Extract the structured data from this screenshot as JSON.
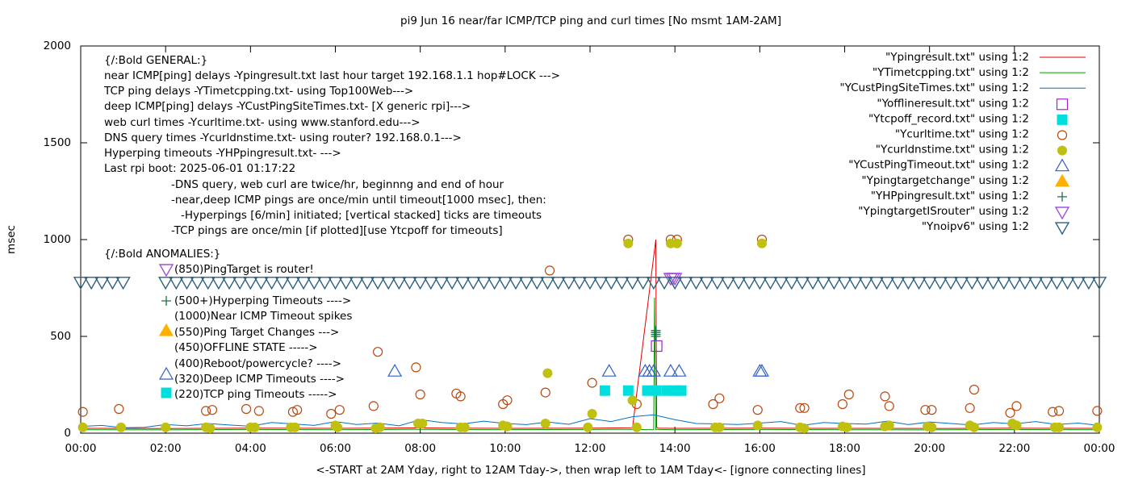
{
  "chart_data": {
    "type": "scatter",
    "title": "pi9 Jun 16  near/far ICMP/TCP ping and curl times [No msmt 1AM-2AM]",
    "xlabel": "<-START at 2AM Yday, right to 12AM Tday->, then wrap left to 1AM Tday<- [ignore connecting lines]",
    "ylabel": "msec",
    "xlim": [
      0,
      24
    ],
    "ylim": [
      0,
      2000
    ],
    "xticks": [
      {
        "value": 0,
        "label": "00:00"
      },
      {
        "value": 2,
        "label": "02:00"
      },
      {
        "value": 4,
        "label": "04:00"
      },
      {
        "value": 6,
        "label": "06:00"
      },
      {
        "value": 8,
        "label": "08:00"
      },
      {
        "value": 10,
        "label": "10:00"
      },
      {
        "value": 12,
        "label": "12:00"
      },
      {
        "value": 14,
        "label": "14:00"
      },
      {
        "value": 16,
        "label": "16:00"
      },
      {
        "value": 18,
        "label": "18:00"
      },
      {
        "value": 20,
        "label": "20:00"
      },
      {
        "value": 22,
        "label": "22:00"
      },
      {
        "value": 24,
        "label": "00:00"
      }
    ],
    "yticks": [
      0,
      500,
      1000,
      1500,
      2000
    ],
    "legend": "top-right",
    "annotations": [
      "{/:Bold GENERAL:}",
      "near ICMP[ping] delays -Ypingresult.txt last hour target 192.168.1.1 hop#LOCK --->",
      "TCP ping delays -YTimetcpping.txt- using Top100Web--->",
      "deep ICMP[ping] delays -YCustPingSiteTimes.txt- [X generic rpi]--->",
      "web curl times -Ycurltime.txt- using www.stanford.edu--->",
      "DNS query times -Ycurldnstime.txt- using router? 192.168.0.1--->",
      "Hyperping timeouts -YHPpingresult.txt- --->",
      "Last rpi boot: 2025-06-01 01:17:22",
      "-DNS query, web curl are twice/hr, beginnng and end of hour",
      "-near,deep ICMP pings are once/min until timeout[1000 msec], then:",
      "-Hyperpings [6/min] initiated; [vertical stacked] ticks are timeouts",
      "-TCP pings are once/min [if plotted][use Ytcpoff for timeouts]",
      "{/:Bold ANOMALIES:}",
      "(850)PingTarget is router!",
      "(500+)Hyperping Timeouts ---->",
      "(1000)Near ICMP Timeout spikes",
      "(550)Ping Target Changes --->",
      "(450)OFFLINE STATE ----->",
      "(400)Reboot/powercycle? ---->",
      "(320)Deep ICMP Timeouts ---->",
      "(220)TCP ping Timeouts ----->"
    ],
    "series": [
      {
        "name": "\"Ypingresult.txt\" using 1:2",
        "color": "#e00000",
        "marker": "line",
        "x": [
          0,
          2,
          4,
          6,
          8,
          10,
          12,
          13,
          13.55,
          13.57,
          13.6,
          14,
          16,
          18,
          20,
          22,
          24
        ],
        "values": [
          25,
          24,
          26,
          25,
          27,
          25,
          26,
          28,
          1000,
          30,
          26,
          25,
          26,
          25,
          24,
          26,
          25
        ]
      },
      {
        "name": "\"YTimetcpping.txt\" using 1:2",
        "color": "#009e00",
        "marker": "line",
        "x": [
          0,
          2,
          4,
          6,
          8,
          10,
          12,
          13,
          13.5,
          13.52,
          13.55,
          14,
          16,
          18,
          20,
          22,
          24
        ],
        "values": [
          18,
          17,
          19,
          18,
          20,
          18,
          19,
          20,
          18,
          700,
          20,
          18,
          19,
          18,
          17,
          19,
          18
        ]
      },
      {
        "name": "\"YCustPingSiteTimes.txt\" using 1:2",
        "color": "#0072c0",
        "marker": "line",
        "x": [
          0,
          0.5,
          1,
          1.5,
          2,
          2.5,
          3,
          3.5,
          4,
          4.5,
          5,
          5.5,
          6,
          6.5,
          7,
          7.5,
          8,
          8.5,
          9,
          9.5,
          10,
          10.5,
          11,
          11.5,
          12,
          12.5,
          13,
          13.5,
          14,
          14.5,
          15,
          15.5,
          16,
          16.5,
          17,
          17.5,
          18,
          18.5,
          19,
          19.5,
          20,
          20.5,
          21,
          21.5,
          22,
          22.5,
          23,
          23.5,
          24
        ],
        "values": [
          35,
          40,
          28,
          30,
          45,
          38,
          50,
          42,
          36,
          55,
          48,
          40,
          60,
          45,
          52,
          38,
          70,
          55,
          48,
          62,
          50,
          44,
          58,
          46,
          75,
          60,
          85,
          95,
          70,
          50,
          48,
          45,
          52,
          60,
          40,
          55,
          50,
          47,
          62,
          44,
          58,
          50,
          42,
          55,
          48,
          60,
          45,
          52,
          40
        ]
      },
      {
        "name": "\"Yofflineresult.txt\" using 1:2",
        "color": "#a020d0",
        "marker": "square-open",
        "x": [
          13.57
        ],
        "values": [
          450
        ]
      },
      {
        "name": "\"Ytcpoff_record.txt\" using 1:2",
        "color": "#00dede",
        "marker": "square",
        "x": [
          12.35,
          12.9,
          13.35,
          13.55,
          13.8,
          14.0,
          14.15
        ],
        "values": [
          220,
          220,
          220,
          220,
          220,
          220,
          220
        ]
      },
      {
        "name": "\"Ycurltime.txt\" using 1:2",
        "color": "#b8480f",
        "marker": "circle-open",
        "x": [
          0.05,
          0.9,
          2.95,
          3.1,
          3.9,
          4.2,
          5.0,
          5.1,
          5.9,
          6.1,
          6.9,
          7.0,
          7.9,
          8.0,
          8.85,
          8.95,
          9.95,
          10.05,
          10.95,
          11.05,
          12.05,
          12.9,
          13.1,
          13.9,
          14.05,
          14.9,
          15.05,
          15.95,
          16.05,
          16.95,
          17.05,
          17.95,
          18.1,
          18.95,
          19.05,
          19.9,
          20.05,
          20.95,
          21.05,
          21.9,
          22.05,
          22.9,
          23.05,
          23.95
        ],
        "values": [
          110,
          125,
          115,
          120,
          125,
          115,
          110,
          120,
          100,
          120,
          140,
          420,
          340,
          200,
          205,
          190,
          150,
          170,
          210,
          840,
          260,
          1000,
          150,
          1000,
          1000,
          150,
          180,
          120,
          1000,
          130,
          130,
          150,
          200,
          190,
          140,
          120,
          120,
          130,
          225,
          105,
          140,
          110,
          115,
          115
        ]
      },
      {
        "name": "\"Ycurldnstime.txt\" using 1:2",
        "color": "#c0c010",
        "marker": "circle",
        "x": [
          0.05,
          0.95,
          2.0,
          2.95,
          3.05,
          4.0,
          4.1,
          4.95,
          5.05,
          6.0,
          6.05,
          6.95,
          7.05,
          7.95,
          8.05,
          8.95,
          9.05,
          9.95,
          10.05,
          10.95,
          11.0,
          11.95,
          12.05,
          12.9,
          13.0,
          13.1,
          13.9,
          14.05,
          14.95,
          15.05,
          15.95,
          16.05,
          16.95,
          17.05,
          17.95,
          18.05,
          18.95,
          19.05,
          19.95,
          20.05,
          20.95,
          21.05,
          21.95,
          22.05,
          22.95,
          23.05,
          23.95
        ],
        "values": [
          30,
          30,
          30,
          30,
          25,
          30,
          30,
          30,
          30,
          40,
          30,
          25,
          30,
          50,
          50,
          30,
          30,
          40,
          35,
          50,
          310,
          30,
          100,
          980,
          170,
          30,
          980,
          980,
          30,
          30,
          40,
          980,
          30,
          25,
          35,
          30,
          35,
          40,
          35,
          30,
          40,
          30,
          50,
          40,
          30,
          30,
          30
        ]
      },
      {
        "name": "\"YCustPingTimeout.txt\" using 1:2",
        "color": "#3060c8",
        "marker": "triangle-up-open",
        "x": [
          7.4,
          12.45,
          13.3,
          13.4,
          13.5,
          13.9,
          14.1,
          16.0,
          16.05
        ],
        "values": [
          320,
          320,
          320,
          320,
          320,
          320,
          320,
          320,
          320
        ]
      },
      {
        "name": "\"Ypingtargetchange\" using 1:2",
        "color": "#ffb000",
        "marker": "triangle-up",
        "x": [],
        "values": []
      },
      {
        "name": "\"YHPpingresult.txt\" using 1:2",
        "color": "#207048",
        "marker": "plus",
        "x": [
          13.55,
          13.55,
          13.55,
          13.55
        ],
        "values": [
          500,
          510,
          520,
          530
        ]
      },
      {
        "name": "\"YpingtargetISrouter\" using 1:2",
        "color": "#a050e0",
        "marker": "triangle-down-open",
        "x": [
          13.9,
          13.95,
          14.0
        ],
        "values": [
          800,
          800,
          800
        ]
      },
      {
        "name": "\"Ynoipv6\" using 1:2",
        "color": "#2c6080",
        "marker": "triangle-down-open",
        "x": [
          0,
          0.25,
          0.5,
          0.75,
          1,
          2,
          2.25,
          2.5,
          2.75,
          3,
          3.25,
          3.5,
          3.75,
          4,
          4.25,
          4.5,
          4.75,
          5,
          5.25,
          5.5,
          5.75,
          6,
          6.25,
          6.5,
          6.75,
          7,
          7.25,
          7.5,
          7.75,
          8,
          8.25,
          8.5,
          8.75,
          9,
          9.25,
          9.5,
          9.75,
          10,
          10.25,
          10.5,
          10.75,
          11,
          11.25,
          11.5,
          11.75,
          12,
          12.25,
          12.5,
          12.75,
          13,
          13.25,
          13.5,
          13.75,
          14,
          14.25,
          14.5,
          14.75,
          15,
          15.25,
          15.5,
          15.75,
          16,
          16.25,
          16.5,
          16.75,
          17,
          17.25,
          17.5,
          17.75,
          18,
          18.25,
          18.5,
          18.75,
          19,
          19.25,
          19.5,
          19.75,
          20,
          20.25,
          20.5,
          20.75,
          21,
          21.25,
          21.5,
          21.75,
          22,
          22.25,
          22.5,
          22.75,
          23,
          23.25,
          23.5,
          23.75,
          24
        ],
        "values": [
          780,
          780,
          780,
          780,
          780,
          780,
          780,
          780,
          780,
          780,
          780,
          780,
          780,
          780,
          780,
          780,
          780,
          780,
          780,
          780,
          780,
          780,
          780,
          780,
          780,
          780,
          780,
          780,
          780,
          780,
          780,
          780,
          780,
          780,
          780,
          780,
          780,
          780,
          780,
          780,
          780,
          780,
          780,
          780,
          780,
          780,
          780,
          780,
          780,
          780,
          780,
          780,
          780,
          780,
          780,
          780,
          780,
          780,
          780,
          780,
          780,
          780,
          780,
          780,
          780,
          780,
          780,
          780,
          780,
          780,
          780,
          780,
          780,
          780,
          780,
          780,
          780,
          780,
          780,
          780,
          780,
          780,
          780,
          780,
          780,
          780,
          780,
          780,
          780,
          780,
          780,
          780,
          780,
          780
        ]
      }
    ]
  }
}
